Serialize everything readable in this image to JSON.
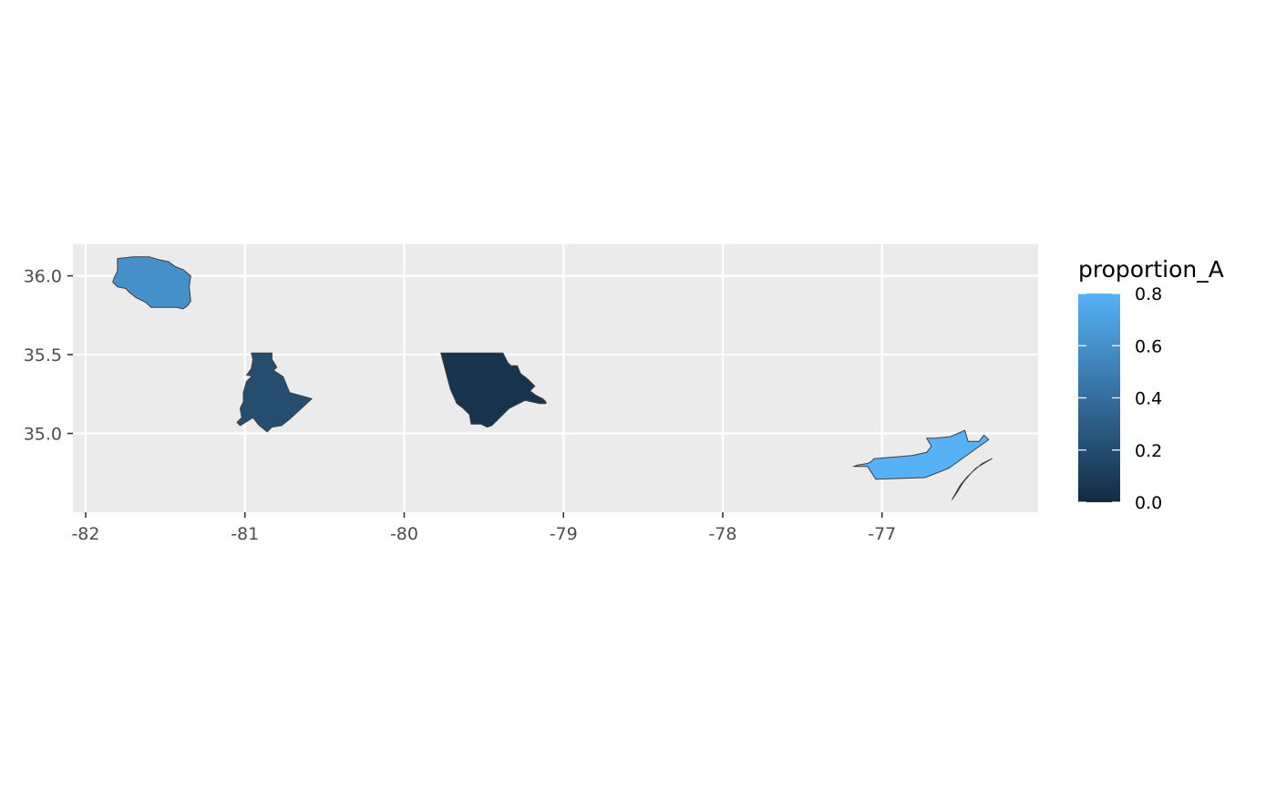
{
  "chart_data": {
    "type": "map",
    "title": "",
    "xlabel": "",
    "ylabel": "",
    "xlim": [
      -82.08,
      -76.02
    ],
    "ylim": [
      34.5,
      36.2
    ],
    "x_ticks": [
      -82,
      -81,
      -80,
      -79,
      -78,
      -77
    ],
    "x_tick_labels": [
      "-82",
      "-81",
      "-80",
      "-79",
      "-78",
      "-77"
    ],
    "y_ticks": [
      35.0,
      35.5,
      36.0
    ],
    "y_tick_labels": [
      "35.0",
      "35.5",
      "36.0"
    ],
    "grid": true,
    "panel_background": "#EBEBEB",
    "grid_color": "#FFFFFF",
    "outline_color": "#404040",
    "legend": {
      "title": "proportion_A",
      "position": "right",
      "range": [
        0.0,
        0.8
      ],
      "ticks": [
        0.0,
        0.2,
        0.4,
        0.6,
        0.8
      ],
      "tick_labels": [
        "0.0",
        "0.2",
        "0.4",
        "0.6",
        "0.8"
      ],
      "low_color": "#132B43",
      "high_color": "#56B1F7"
    },
    "regions": [
      {
        "id": "ashe",
        "value": 0.6,
        "polygons": [
          [
            [
              -81.8,
              36.11
            ],
            [
              -81.7,
              36.12
            ],
            [
              -81.6,
              36.12
            ],
            [
              -81.53,
              36.1
            ],
            [
              -81.48,
              36.09
            ],
            [
              -81.44,
              36.06
            ],
            [
              -81.39,
              36.04
            ],
            [
              -81.34,
              36.0
            ],
            [
              -81.35,
              35.93
            ],
            [
              -81.34,
              35.84
            ],
            [
              -81.36,
              35.81
            ],
            [
              -81.39,
              35.79
            ],
            [
              -81.43,
              35.8
            ],
            [
              -81.53,
              35.8
            ],
            [
              -81.59,
              35.8
            ],
            [
              -81.62,
              35.83
            ],
            [
              -81.68,
              35.86
            ],
            [
              -81.72,
              35.89
            ],
            [
              -81.75,
              35.92
            ],
            [
              -81.8,
              35.93
            ],
            [
              -81.83,
              35.96
            ],
            [
              -81.82,
              35.99
            ],
            [
              -81.8,
              36.03
            ],
            [
              -81.8,
              36.11
            ]
          ]
        ]
      },
      {
        "id": "cleveland",
        "value": 0.2,
        "polygons": [
          [
            [
              -80.96,
              35.51
            ],
            [
              -80.83,
              35.51
            ],
            [
              -80.83,
              35.47
            ],
            [
              -80.8,
              35.42
            ],
            [
              -80.82,
              35.4
            ],
            [
              -80.76,
              35.36
            ],
            [
              -80.72,
              35.26
            ],
            [
              -80.58,
              35.22
            ],
            [
              -80.72,
              35.09
            ],
            [
              -80.77,
              35.05
            ],
            [
              -80.83,
              35.04
            ],
            [
              -80.86,
              35.01
            ],
            [
              -80.91,
              35.05
            ],
            [
              -80.95,
              35.1
            ],
            [
              -81.03,
              35.05
            ],
            [
              -81.05,
              35.07
            ],
            [
              -81.02,
              35.1
            ],
            [
              -81.03,
              35.16
            ],
            [
              -81.01,
              35.2
            ],
            [
              -81.01,
              35.26
            ],
            [
              -80.99,
              35.33
            ],
            [
              -80.96,
              35.36
            ],
            [
              -80.93,
              35.36
            ],
            [
              -80.99,
              35.37
            ],
            [
              -80.96,
              35.41
            ],
            [
              -80.95,
              35.47
            ],
            [
              -80.96,
              35.51
            ]
          ]
        ]
      },
      {
        "id": "chatham",
        "value": 0.05,
        "polygons": [
          [
            [
              -79.77,
              35.51
            ],
            [
              -79.56,
              35.51
            ],
            [
              -79.38,
              35.51
            ],
            [
              -79.35,
              35.45
            ],
            [
              -79.33,
              35.43
            ],
            [
              -79.29,
              35.43
            ],
            [
              -79.27,
              35.38
            ],
            [
              -79.23,
              35.35
            ],
            [
              -79.18,
              35.3
            ],
            [
              -79.21,
              35.27
            ],
            [
              -79.17,
              35.24
            ],
            [
              -79.13,
              35.22
            ],
            [
              -79.11,
              35.2
            ],
            [
              -79.11,
              35.19
            ],
            [
              -79.15,
              35.19
            ],
            [
              -79.24,
              35.21
            ],
            [
              -79.34,
              35.16
            ],
            [
              -79.45,
              35.05
            ],
            [
              -79.48,
              35.04
            ],
            [
              -79.52,
              35.06
            ],
            [
              -79.58,
              35.06
            ],
            [
              -79.59,
              35.12
            ],
            [
              -79.63,
              35.16
            ],
            [
              -79.67,
              35.19
            ],
            [
              -79.71,
              35.28
            ],
            [
              -79.77,
              35.51
            ]
          ]
        ]
      },
      {
        "id": "carteret",
        "value": 0.8,
        "polygons": [
          [
            [
              -77.18,
              34.79
            ],
            [
              -77.09,
              34.79
            ],
            [
              -77.04,
              34.71
            ],
            [
              -76.73,
              34.72
            ],
            [
              -76.58,
              34.78
            ],
            [
              -76.33,
              34.96
            ],
            [
              -76.36,
              34.99
            ],
            [
              -76.39,
              34.95
            ],
            [
              -76.46,
              34.95
            ],
            [
              -76.48,
              35.02
            ],
            [
              -76.57,
              34.98
            ],
            [
              -76.67,
              34.97
            ],
            [
              -76.72,
              34.97
            ],
            [
              -76.69,
              34.92
            ],
            [
              -76.72,
              34.88
            ],
            [
              -76.81,
              34.86
            ],
            [
              -77.05,
              34.84
            ],
            [
              -77.07,
              34.82
            ],
            [
              -77.09,
              34.81
            ],
            [
              -77.15,
              34.8
            ],
            [
              -77.18,
              34.79
            ]
          ],
          [
            [
              -76.56,
              34.58
            ],
            [
              -76.52,
              34.64
            ],
            [
              -76.49,
              34.69
            ],
            [
              -76.44,
              34.75
            ],
            [
              -76.37,
              34.81
            ],
            [
              -76.31,
              34.84
            ],
            [
              -76.41,
              34.78
            ],
            [
              -76.47,
              34.72
            ],
            [
              -76.51,
              34.67
            ],
            [
              -76.55,
              34.6
            ],
            [
              -76.56,
              34.58
            ]
          ]
        ]
      }
    ]
  }
}
